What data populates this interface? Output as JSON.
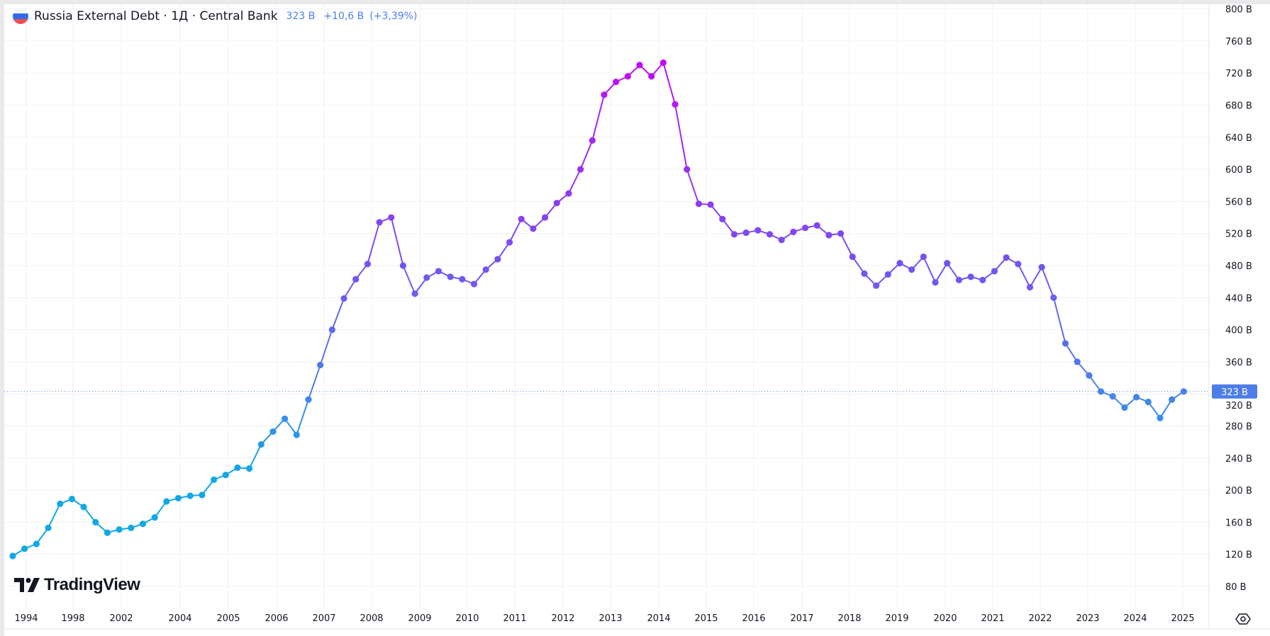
{
  "header": {
    "title": "Russia External Debt · 1Д · Central Bank",
    "last_value": "323 B",
    "change": "+10,6 B",
    "change_pct": "(+3,39%)",
    "flag_icon": "russia-flag-icon"
  },
  "logo": {
    "text": "TradingView"
  },
  "price_label": "323 B",
  "colors": {
    "low": "#12a8e6",
    "mid": "#7256f0",
    "high": "#c10cf2",
    "end": "#4a80ea",
    "price_label_bg": "#4d7ee8",
    "legend": "#4c7ef0"
  },
  "chart_data": {
    "type": "line",
    "markers": true,
    "grid": true,
    "y_axis_position": "right",
    "ylim": [
      80,
      800
    ],
    "y_ticks": [
      "800 B",
      "760 B",
      "720 B",
      "680 B",
      "640 B",
      "600 B",
      "560 B",
      "520 B",
      "480 B",
      "440 B",
      "400 B",
      "360 B",
      "320 B",
      "280 B",
      "240 B",
      "200 B",
      "160 B",
      "120 B",
      "80 B"
    ],
    "y_tick_values": [
      800,
      760,
      720,
      680,
      640,
      600,
      560,
      520,
      480,
      440,
      400,
      360,
      320,
      280,
      240,
      200,
      160,
      120,
      80
    ],
    "x_ticks": [
      "1994",
      "1998",
      "2002",
      "2004",
      "2005",
      "2006",
      "2007",
      "2008",
      "2009",
      "2010",
      "2011",
      "2012",
      "2013",
      "2014",
      "2015",
      "2016",
      "2017",
      "2018",
      "2019",
      "2020",
      "2021",
      "2022",
      "2023",
      "2024",
      "2025"
    ],
    "unit": "B",
    "values": [
      118,
      127,
      133,
      153,
      183,
      189,
      179,
      160,
      147,
      151,
      153,
      158,
      166,
      186,
      190,
      193,
      194,
      213,
      219,
      228,
      227,
      257,
      273,
      289,
      269,
      313,
      356,
      400,
      439,
      463,
      482,
      534,
      540,
      480,
      445,
      465,
      473,
      466,
      463,
      457,
      475,
      488,
      509,
      538,
      526,
      540,
      558,
      570,
      600,
      636,
      693,
      709,
      716,
      730,
      716,
      733,
      681,
      600,
      557,
      556,
      538,
      519,
      521,
      524,
      519,
      512,
      522,
      527,
      530,
      518,
      520,
      491,
      470,
      455,
      469,
      483,
      475,
      491,
      459,
      483,
      462,
      466,
      462,
      473,
      490,
      482,
      453,
      478,
      440,
      383,
      360,
      343,
      323,
      317,
      303,
      316,
      310,
      290,
      313,
      323
    ],
    "last_value": 323
  }
}
